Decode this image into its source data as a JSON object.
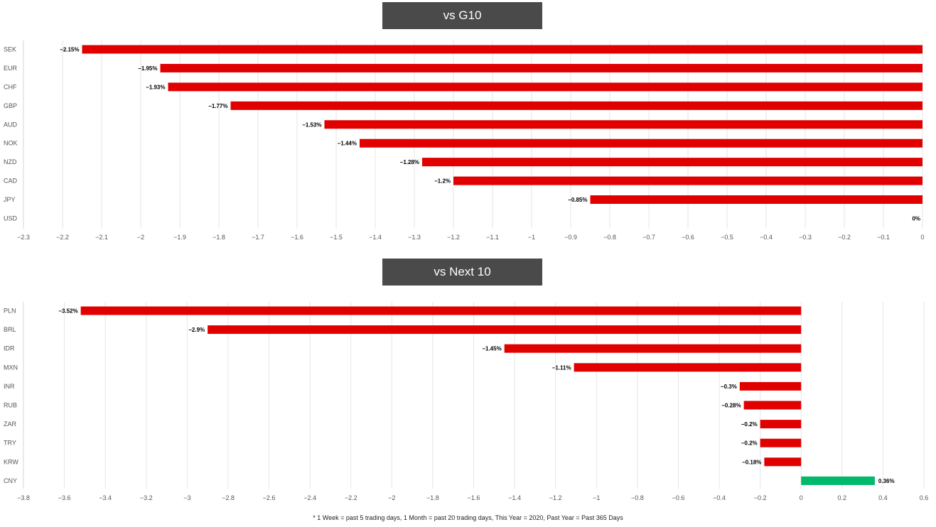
{
  "colors": {
    "negative": "#e10000",
    "positive": "#00b96b",
    "grid": "#e6e6e6",
    "title_bg": "#4a4a4a"
  },
  "g10": {
    "title": "vs G10"
  },
  "n10": {
    "title": "vs Next 10"
  },
  "footnote": "* 1 Week = past 5 trading days, 1 Month = past 20 trading days, This Year = 2020, Past Year = Past 365 Days",
  "chart_data": [
    {
      "type": "bar",
      "orientation": "horizontal",
      "title": "vs G10",
      "categories": [
        "SEK",
        "EUR",
        "CHF",
        "GBP",
        "AUD",
        "NOK",
        "NZD",
        "CAD",
        "JPY",
        "USD"
      ],
      "values": [
        -2.15,
        -1.95,
        -1.93,
        -1.77,
        -1.53,
        -1.44,
        -1.28,
        -1.2,
        -0.85,
        0
      ],
      "data_labels": [
        "−2.15%",
        "−1.95%",
        "−1.93%",
        "−1.77%",
        "−1.53%",
        "−1.44%",
        "−1.28%",
        "−1.2%",
        "−0.85%",
        "0%"
      ],
      "xlim": [
        -2.3,
        0
      ],
      "xticks": [
        -2.3,
        -2.2,
        -2.1,
        -2,
        -1.9,
        -1.8,
        -1.7,
        -1.6,
        -1.5,
        -1.4,
        -1.3,
        -1.2,
        -1.1,
        -1,
        -0.9,
        -0.8,
        -0.7,
        -0.6,
        -0.5,
        -0.4,
        -0.3,
        -0.2,
        -0.1,
        0
      ],
      "xtick_labels": [
        "−2.3",
        "−2.2",
        "−2.1",
        "−2",
        "−1.9",
        "−1.8",
        "−1.7",
        "−1.6",
        "−1.5",
        "−1.4",
        "−1.3",
        "−1.2",
        "−1.1",
        "−1",
        "−0.9",
        "−0.8",
        "−0.7",
        "−0.6",
        "−0.5",
        "−0.4",
        "−0.3",
        "−0.2",
        "−0.1",
        "0"
      ],
      "grid": true
    },
    {
      "type": "bar",
      "orientation": "horizontal",
      "title": "vs Next 10",
      "categories": [
        "PLN",
        "BRL",
        "IDR",
        "MXN",
        "INR",
        "RUB",
        "ZAR",
        "TRY",
        "KRW",
        "CNY"
      ],
      "values": [
        -3.52,
        -2.9,
        -1.45,
        -1.11,
        -0.3,
        -0.28,
        -0.2,
        -0.2,
        -0.18,
        0.36
      ],
      "data_labels": [
        "−3.52%",
        "−2.9%",
        "−1.45%",
        "−1.11%",
        "−0.3%",
        "−0.28%",
        "−0.2%",
        "−0.2%",
        "−0.18%",
        "0.36%"
      ],
      "xlim": [
        -3.8,
        0.6
      ],
      "xticks": [
        -3.8,
        -3.6,
        -3.4,
        -3.2,
        -3,
        -2.8,
        -2.6,
        -2.4,
        -2.2,
        -2,
        -1.8,
        -1.6,
        -1.4,
        -1.2,
        -1,
        -0.8,
        -0.6,
        -0.4,
        -0.2,
        0,
        0.2,
        0.4,
        0.6
      ],
      "xtick_labels": [
        "−3.8",
        "−3.6",
        "−3.4",
        "−3.2",
        "−3",
        "−2.8",
        "−2.6",
        "−2.4",
        "−2.2",
        "−2",
        "−1.8",
        "−1.6",
        "−1.4",
        "−1.2",
        "−1",
        "−0.8",
        "−0.6",
        "−0.4",
        "−0.2",
        "0",
        "0.2",
        "0.4",
        "0.6"
      ],
      "grid": true
    }
  ]
}
